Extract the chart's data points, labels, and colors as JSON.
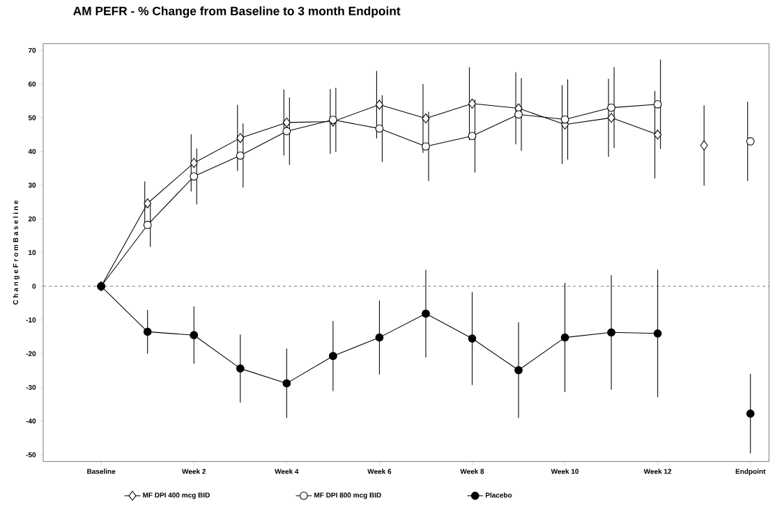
{
  "chart_data": {
    "type": "line",
    "title": "AM PEFR  - % Change from Baseline to 3 month Endpoint",
    "ylabel": "C h a n g e   F r o m   B a s e l i n e",
    "categories": [
      "Baseline",
      null,
      "Week 2",
      null,
      "Week 4",
      null,
      "Week 6",
      null,
      "Week 8",
      null,
      "Week 10",
      null,
      "Week 12",
      null,
      "Endpoint"
    ],
    "ylim": [
      -52,
      72
    ],
    "yticks": [
      -50,
      -40,
      -30,
      -20,
      -10,
      0,
      10,
      20,
      30,
      40,
      50,
      60,
      70
    ],
    "legend": "bottom",
    "ref_lines": [
      {
        "axis": "y",
        "value": 0,
        "line_style": "dashed"
      }
    ],
    "series": [
      {
        "name": "MF DPI 400 mcg BID",
        "marker": "diamond",
        "color": "#000000",
        "values": [
          0,
          24.6,
          36.6,
          44,
          48.6,
          48.9,
          53.9,
          49.8,
          54.2,
          52.8,
          48,
          50,
          45,
          null,
          null
        ],
        "errors": [
          null,
          6.5,
          8.5,
          9.8,
          9.8,
          9.6,
          10,
          10.2,
          10.8,
          10.7,
          11.7,
          11.6,
          13,
          null,
          null
        ]
      },
      {
        "name": "MF DPI 800 mcg BID",
        "marker": "circle",
        "color": "#000000",
        "values": [
          0,
          18.2,
          32.6,
          38.8,
          46,
          49.4,
          46.8,
          41.5,
          44.6,
          51,
          49.5,
          53,
          54,
          null,
          null
        ],
        "errors": [
          null,
          6.5,
          8.3,
          9.5,
          10,
          9.5,
          9.9,
          10.3,
          10.8,
          10.8,
          11.9,
          12,
          13.3,
          null,
          null
        ]
      },
      {
        "name": "Placebo",
        "marker": "circle",
        "color": "#000000",
        "values": [
          0,
          -13.5,
          -14.5,
          -24.4,
          -28.8,
          -20.7,
          -15.2,
          -8.1,
          -15.5,
          -24.9,
          -15.2,
          -13.7,
          -14,
          null,
          null
        ],
        "errors": [
          null,
          6.5,
          8.5,
          10.1,
          10.3,
          10.4,
          11,
          13,
          13.8,
          14.2,
          16.2,
          17,
          18.9,
          null,
          null
        ]
      },
      {
        "type": "scatter",
        "marker": "diamond",
        "color": "#000000",
        "values": [
          null,
          null,
          null,
          null,
          null,
          null,
          null,
          null,
          null,
          null,
          null,
          null,
          null,
          41.8,
          null
        ],
        "errors": [
          null,
          null,
          null,
          null,
          null,
          null,
          null,
          null,
          null,
          null,
          null,
          null,
          null,
          11.9,
          null
        ]
      },
      {
        "type": "scatter",
        "marker": "circle",
        "color": "#000000",
        "values": [
          null,
          null,
          null,
          null,
          null,
          null,
          null,
          null,
          null,
          null,
          null,
          null,
          null,
          null,
          43
        ],
        "errors": [
          null,
          null,
          null,
          null,
          null,
          null,
          null,
          null,
          null,
          null,
          null,
          null,
          null,
          null,
          11.8
        ]
      },
      {
        "type": "scatter",
        "marker": "circle",
        "color": "#000000",
        "values": [
          null,
          null,
          null,
          null,
          null,
          null,
          null,
          null,
          null,
          null,
          null,
          null,
          null,
          null,
          -37.8
        ],
        "errors": [
          null,
          null,
          null,
          null,
          null,
          null,
          null,
          null,
          null,
          null,
          null,
          null,
          null,
          null,
          11.8
        ]
      }
    ]
  }
}
